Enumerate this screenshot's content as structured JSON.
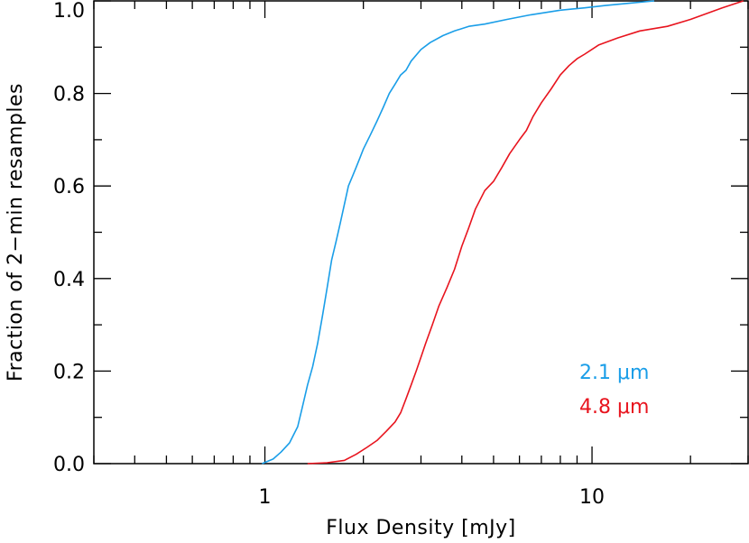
{
  "chart_data": {
    "type": "line",
    "xlabel": "Flux Density [mJy]",
    "ylabel": "Fraction of 2−min resamples",
    "x_scale": "log",
    "xlim": [
      0.3,
      30
    ],
    "ylim": [
      0.0,
      1.0
    ],
    "x_tick_labels": [
      {
        "value": 1,
        "label": "1"
      },
      {
        "value": 10,
        "label": "10"
      }
    ],
    "y_tick_labels": [
      {
        "value": 0.0,
        "label": "0.0"
      },
      {
        "value": 0.2,
        "label": "0.2"
      },
      {
        "value": 0.4,
        "label": "0.4"
      },
      {
        "value": 0.6,
        "label": "0.6"
      },
      {
        "value": 0.8,
        "label": "0.8"
      },
      {
        "value": 1.0,
        "label": "1.0"
      }
    ],
    "grid": false,
    "legend_placement": "bottom-right",
    "series": [
      {
        "name": "2.1 μm",
        "color": "#1a9ee8",
        "x": [
          0.98,
          1.06,
          1.12,
          1.19,
          1.26,
          1.3,
          1.35,
          1.4,
          1.45,
          1.5,
          1.55,
          1.6,
          1.65,
          1.7,
          1.75,
          1.8,
          1.85,
          1.9,
          1.95,
          2.0,
          2.1,
          2.2,
          2.3,
          2.4,
          2.5,
          2.6,
          2.7,
          2.8,
          3.0,
          3.2,
          3.5,
          3.8,
          4.2,
          4.7,
          5.5,
          6.5,
          8.0,
          9.5,
          11.0,
          13.0,
          15.5
        ],
        "y": [
          0.0,
          0.01,
          0.025,
          0.045,
          0.08,
          0.12,
          0.17,
          0.21,
          0.26,
          0.32,
          0.38,
          0.44,
          0.48,
          0.52,
          0.56,
          0.6,
          0.62,
          0.64,
          0.66,
          0.68,
          0.71,
          0.74,
          0.77,
          0.8,
          0.82,
          0.84,
          0.85,
          0.87,
          0.895,
          0.91,
          0.925,
          0.935,
          0.945,
          0.95,
          0.96,
          0.97,
          0.98,
          0.985,
          0.99,
          0.995,
          1.0
        ]
      },
      {
        "name": "4.8 μm",
        "color": "#e8141e",
        "x": [
          1.35,
          1.55,
          1.75,
          1.9,
          2.05,
          2.2,
          2.35,
          2.5,
          2.6,
          2.7,
          2.8,
          2.9,
          3.0,
          3.1,
          3.25,
          3.4,
          3.6,
          3.8,
          4.0,
          4.2,
          4.4,
          4.7,
          5.0,
          5.3,
          5.6,
          6.0,
          6.3,
          6.6,
          7.0,
          7.5,
          8.0,
          8.5,
          9.0,
          9.5,
          10.5,
          12.0,
          14.0,
          17.0,
          20.0,
          25.0,
          29.0
        ],
        "y": [
          0.0,
          0.002,
          0.007,
          0.02,
          0.035,
          0.05,
          0.07,
          0.09,
          0.11,
          0.14,
          0.17,
          0.2,
          0.23,
          0.26,
          0.3,
          0.34,
          0.38,
          0.42,
          0.47,
          0.51,
          0.55,
          0.59,
          0.61,
          0.64,
          0.67,
          0.7,
          0.72,
          0.75,
          0.78,
          0.81,
          0.84,
          0.86,
          0.875,
          0.885,
          0.905,
          0.92,
          0.935,
          0.945,
          0.96,
          0.985,
          1.0
        ]
      }
    ]
  }
}
